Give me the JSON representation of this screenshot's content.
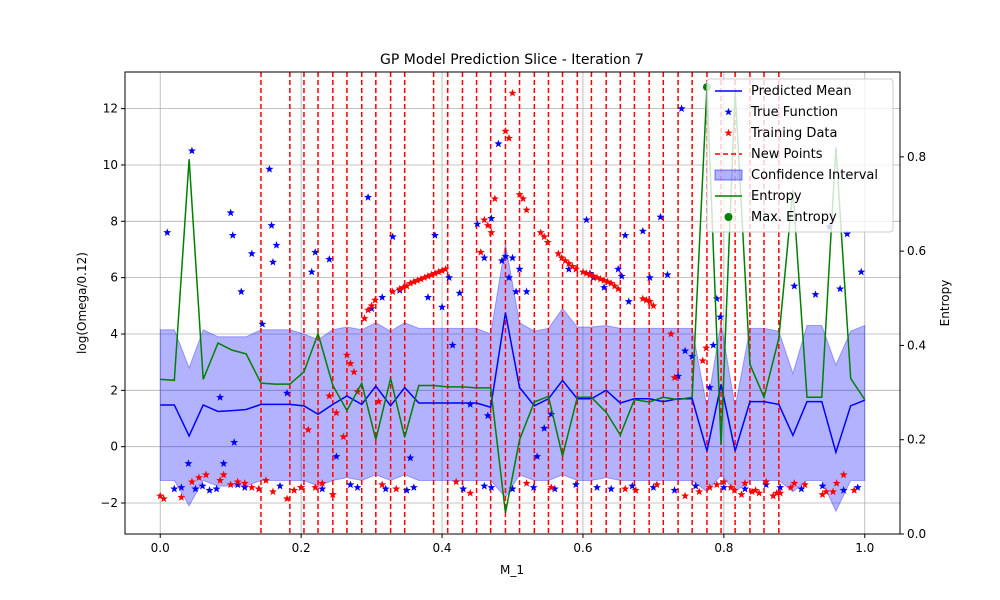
{
  "chart_data": {
    "type": "line",
    "title": "GP Model Prediction Slice - Iteration 7",
    "xlabel": "M_1",
    "ylabel": "log(Omega/0.12)",
    "y2label": "Entropy",
    "xlim": [
      -0.05,
      1.05
    ],
    "ylim": [
      -3.1,
      13.3
    ],
    "y2lim": [
      0.0,
      0.98
    ],
    "x_ticks": [
      0.0,
      0.2,
      0.4,
      0.6,
      0.8,
      1.0
    ],
    "y_ticks": [
      -2,
      0,
      2,
      4,
      6,
      8,
      10,
      12
    ],
    "y2_ticks": [
      0.0,
      0.2,
      0.4,
      0.6,
      0.8
    ],
    "grid": true,
    "legend_position": "top-right",
    "colors": {
      "predicted_mean": "#0000ff",
      "true_function": "#0000ff",
      "training_data": "#ff0000",
      "new_points": "#ff0000",
      "confidence_interval": "#0000ff",
      "entropy": "#008000",
      "max_entropy": "#008000"
    },
    "legend": [
      {
        "key": "predicted_mean",
        "label": "Predicted Mean",
        "marker": "line"
      },
      {
        "key": "true_function",
        "label": "True Function",
        "marker": "star"
      },
      {
        "key": "training_data",
        "label": "Training Data",
        "marker": "star"
      },
      {
        "key": "new_points",
        "label": "New Points",
        "marker": "dashed"
      },
      {
        "key": "confidence_interval",
        "label": "Confidence Interval",
        "marker": "patch"
      },
      {
        "key": "entropy",
        "label": "Entropy",
        "marker": "line"
      },
      {
        "key": "max_entropy",
        "label": "Max. Entropy",
        "marker": "dot"
      }
    ],
    "predicted_mean": {
      "x": [
        0.0,
        0.02,
        0.041,
        0.061,
        0.082,
        0.102,
        0.122,
        0.143,
        0.163,
        0.184,
        0.204,
        0.224,
        0.245,
        0.265,
        0.286,
        0.306,
        0.327,
        0.347,
        0.367,
        0.388,
        0.408,
        0.429,
        0.449,
        0.469,
        0.49,
        0.51,
        0.531,
        0.551,
        0.571,
        0.592,
        0.612,
        0.633,
        0.653,
        0.673,
        0.694,
        0.714,
        0.735,
        0.755,
        0.776,
        0.796,
        0.816,
        0.837,
        0.857,
        0.878,
        0.898,
        0.918,
        0.939,
        0.959,
        0.98,
        1.0
      ],
      "y": [
        1.48,
        1.48,
        0.38,
        1.48,
        1.25,
        1.28,
        1.32,
        1.5,
        1.5,
        1.5,
        1.45,
        1.15,
        1.5,
        1.8,
        1.5,
        2.15,
        1.45,
        2.1,
        1.55,
        1.55,
        1.55,
        1.55,
        1.55,
        1.4,
        4.75,
        2.1,
        1.45,
        1.7,
        2.35,
        1.7,
        1.7,
        2.0,
        1.55,
        1.7,
        1.7,
        1.6,
        1.7,
        1.7,
        -0.15,
        2.2,
        -0.15,
        1.6,
        1.6,
        1.5,
        0.4,
        1.6,
        1.6,
        -0.2,
        1.45,
        1.65
      ]
    },
    "confidence_interval": {
      "x": [
        0.0,
        0.02,
        0.041,
        0.061,
        0.082,
        0.102,
        0.122,
        0.143,
        0.163,
        0.184,
        0.204,
        0.224,
        0.245,
        0.265,
        0.286,
        0.306,
        0.327,
        0.347,
        0.367,
        0.388,
        0.408,
        0.429,
        0.449,
        0.469,
        0.49,
        0.51,
        0.531,
        0.551,
        0.571,
        0.592,
        0.612,
        0.633,
        0.653,
        0.673,
        0.694,
        0.714,
        0.735,
        0.755,
        0.776,
        0.796,
        0.816,
        0.837,
        0.857,
        0.878,
        0.898,
        0.918,
        0.939,
        0.959,
        0.98,
        1.0
      ],
      "lower": [
        -1.2,
        -1.2,
        -2.1,
        -1.2,
        -1.4,
        -1.4,
        -1.4,
        -1.2,
        -1.2,
        -1.2,
        -1.2,
        -1.4,
        -1.2,
        -1.1,
        -1.2,
        -1.0,
        -1.2,
        -1.0,
        -1.2,
        -1.2,
        -1.2,
        -1.2,
        -1.2,
        -1.2,
        -1.8,
        -1.0,
        -1.2,
        -1.2,
        -1.0,
        -1.2,
        -1.2,
        -1.1,
        -1.2,
        -1.2,
        -1.2,
        -1.2,
        -1.2,
        -1.2,
        -1.6,
        -1.0,
        -1.6,
        -1.2,
        -1.2,
        -1.2,
        -1.6,
        -1.2,
        -1.2,
        -2.3,
        -1.2,
        -1.2
      ],
      "upper": [
        4.15,
        4.15,
        2.8,
        4.15,
        3.9,
        3.9,
        3.9,
        4.15,
        4.15,
        4.15,
        4.0,
        3.8,
        4.15,
        4.25,
        4.15,
        4.4,
        4.1,
        4.4,
        4.2,
        4.2,
        4.2,
        4.2,
        4.2,
        4.0,
        7.2,
        4.4,
        4.1,
        4.2,
        4.9,
        4.25,
        4.25,
        4.3,
        4.2,
        4.2,
        4.2,
        4.2,
        4.2,
        4.2,
        1.4,
        4.4,
        1.4,
        4.2,
        4.2,
        4.1,
        2.6,
        4.3,
        4.3,
        2.9,
        4.1,
        4.3
      ]
    },
    "entropy": {
      "x": [
        0.0,
        0.02,
        0.041,
        0.061,
        0.082,
        0.102,
        0.122,
        0.143,
        0.163,
        0.184,
        0.204,
        0.224,
        0.245,
        0.265,
        0.286,
        0.306,
        0.327,
        0.347,
        0.367,
        0.388,
        0.408,
        0.429,
        0.449,
        0.469,
        0.49,
        0.51,
        0.531,
        0.551,
        0.571,
        0.592,
        0.612,
        0.633,
        0.653,
        0.673,
        0.694,
        0.714,
        0.735,
        0.755,
        0.776,
        0.796,
        0.816,
        0.837,
        0.857,
        0.878,
        0.898,
        0.918,
        0.939,
        0.959,
        0.98,
        1.0
      ],
      "y": [
        0.328,
        0.326,
        0.795,
        0.328,
        0.405,
        0.39,
        0.382,
        0.32,
        0.318,
        0.318,
        0.344,
        0.425,
        0.315,
        0.262,
        0.32,
        0.2,
        0.33,
        0.205,
        0.315,
        0.315,
        0.312,
        0.312,
        0.31,
        0.31,
        0.045,
        0.2,
        0.28,
        0.292,
        0.165,
        0.29,
        0.29,
        0.258,
        0.21,
        0.285,
        0.28,
        0.29,
        0.285,
        0.29,
        0.948,
        0.19,
        0.94,
        0.36,
        0.29,
        0.415,
        0.73,
        0.29,
        0.29,
        0.82,
        0.33,
        0.285
      ]
    },
    "max_entropy": {
      "x": [
        0.776
      ],
      "y": [
        0.948
      ]
    },
    "new_points_x": [
      0.143,
      0.184,
      0.204,
      0.224,
      0.245,
      0.265,
      0.286,
      0.306,
      0.327,
      0.347,
      0.388,
      0.408,
      0.429,
      0.449,
      0.469,
      0.49,
      0.51,
      0.531,
      0.551,
      0.571,
      0.592,
      0.612,
      0.633,
      0.653,
      0.673,
      0.694,
      0.714,
      0.735,
      0.755,
      0.776,
      0.796,
      0.816,
      0.837,
      0.857,
      0.878
    ],
    "true_function": {
      "x": [
        0.01,
        0.04,
        0.045,
        0.085,
        0.09,
        0.1,
        0.103,
        0.105,
        0.115,
        0.13,
        0.145,
        0.155,
        0.158,
        0.16,
        0.165,
        0.18,
        0.215,
        0.22,
        0.24,
        0.25,
        0.295,
        0.3,
        0.315,
        0.33,
        0.34,
        0.355,
        0.38,
        0.39,
        0.4,
        0.41,
        0.415,
        0.425,
        0.44,
        0.45,
        0.46,
        0.465,
        0.47,
        0.48,
        0.485,
        0.49,
        0.495,
        0.5,
        0.505,
        0.51,
        0.52,
        0.535,
        0.545,
        0.555,
        0.58,
        0.605,
        0.61,
        0.615,
        0.63,
        0.65,
        0.655,
        0.66,
        0.665,
        0.685,
        0.695,
        0.71,
        0.72,
        0.735,
        0.74,
        0.745,
        0.755,
        0.78,
        0.785,
        0.79,
        0.795,
        0.9,
        0.93,
        0.95,
        0.965,
        0.975,
        0.995,
        0.02,
        0.03,
        0.05,
        0.06,
        0.07,
        0.08,
        0.11,
        0.12,
        0.14,
        0.17,
        0.2,
        0.23,
        0.27,
        0.28,
        0.32,
        0.35,
        0.36,
        0.43,
        0.46,
        0.47,
        0.5,
        0.53,
        0.56,
        0.59,
        0.62,
        0.64,
        0.67,
        0.7,
        0.73,
        0.76,
        0.8,
        0.83,
        0.86,
        0.88,
        0.91,
        0.94,
        0.97,
        0.99
      ],
      "y": [
        7.6,
        -0.6,
        10.5,
        1.75,
        -0.6,
        8.3,
        7.5,
        0.15,
        5.5,
        6.85,
        4.35,
        9.85,
        7.85,
        6.55,
        7.15,
        1.9,
        6.2,
        6.9,
        6.65,
        -0.35,
        8.85,
        4.9,
        5.3,
        7.45,
        5.55,
        -0.4,
        5.3,
        7.5,
        4.95,
        6.0,
        3.6,
        5.45,
        1.5,
        7.9,
        6.7,
        1.1,
        8.1,
        10.75,
        6.6,
        6.75,
        6.0,
        6.7,
        5.5,
        6.3,
        5.5,
        -0.35,
        0.65,
        1.15,
        6.3,
        8.05,
        6.15,
        6.0,
        5.65,
        6.3,
        6.05,
        7.5,
        5.15,
        7.65,
        6.0,
        8.15,
        6.1,
        2.5,
        12.0,
        3.4,
        3.2,
        2.1,
        3.6,
        5.25,
        4.6,
        5.7,
        5.4,
        7.8,
        5.6,
        7.55,
        6.2,
        -1.5,
        -1.45,
        -1.5,
        -1.4,
        -1.55,
        -1.5,
        -1.35,
        -1.45,
        -1.5,
        -1.4,
        -1.45,
        -1.5,
        -1.35,
        -1.45,
        -1.5,
        -1.55,
        -1.45,
        -1.5,
        -1.4,
        -1.45,
        -1.5,
        -1.45,
        -1.5,
        -1.35,
        -1.45,
        -1.5,
        -1.4,
        -1.45,
        -1.55,
        -1.4,
        -1.45,
        -1.5,
        -1.35,
        -1.45,
        -1.5,
        -1.4,
        -1.55,
        -1.45
      ]
    },
    "training_data": {
      "x": [
        0.0,
        0.005,
        0.03,
        0.045,
        0.055,
        0.065,
        0.085,
        0.09,
        0.1,
        0.11,
        0.14,
        0.15,
        0.18,
        0.2,
        0.21,
        0.23,
        0.24,
        0.25,
        0.26,
        0.265,
        0.27,
        0.275,
        0.28,
        0.29,
        0.295,
        0.3,
        0.305,
        0.31,
        0.33,
        0.34,
        0.345,
        0.35,
        0.355,
        0.36,
        0.365,
        0.37,
        0.375,
        0.38,
        0.385,
        0.39,
        0.395,
        0.4,
        0.405,
        0.455,
        0.46,
        0.465,
        0.47,
        0.475,
        0.49,
        0.495,
        0.5,
        0.51,
        0.515,
        0.52,
        0.54,
        0.545,
        0.55,
        0.565,
        0.57,
        0.575,
        0.58,
        0.585,
        0.59,
        0.6,
        0.605,
        0.61,
        0.615,
        0.62,
        0.625,
        0.63,
        0.635,
        0.64,
        0.645,
        0.65,
        0.685,
        0.69,
        0.695,
        0.7,
        0.725,
        0.73,
        0.77,
        0.775,
        0.78,
        0.79,
        0.8,
        0.815,
        0.83,
        0.84,
        0.85,
        0.87,
        0.88,
        0.9,
        0.94,
        0.955,
        0.96,
        0.97,
        0.985,
        0.12,
        0.13,
        0.16,
        0.19,
        0.22,
        0.245,
        0.315,
        0.335,
        0.42,
        0.44,
        0.52,
        0.555,
        0.66,
        0.675,
        0.705,
        0.745,
        0.765,
        0.81,
        0.825,
        0.845,
        0.86,
        0.875,
        0.895,
        0.915,
        0.945
      ],
      "y": [
        -1.75,
        -1.85,
        -1.8,
        -1.25,
        -1.1,
        -1.0,
        -1.2,
        -1.0,
        -1.35,
        -1.25,
        -1.5,
        -1.2,
        -1.85,
        -1.45,
        0.6,
        -1.3,
        1.8,
        1.2,
        0.35,
        3.25,
        2.95,
        2.65,
        1.95,
        4.55,
        4.85,
        5.0,
        5.2,
        1.6,
        5.5,
        5.6,
        5.65,
        5.7,
        5.8,
        5.85,
        5.9,
        5.95,
        6.0,
        6.05,
        6.1,
        6.15,
        6.2,
        6.25,
        6.3,
        6.9,
        8.05,
        7.85,
        7.6,
        8.8,
        11.2,
        10.95,
        12.55,
        8.95,
        8.8,
        8.4,
        7.6,
        7.45,
        7.25,
        6.85,
        6.7,
        6.6,
        6.5,
        6.4,
        6.3,
        6.2,
        6.15,
        6.1,
        6.05,
        6.0,
        5.95,
        5.9,
        5.85,
        5.8,
        5.7,
        5.6,
        5.25,
        5.2,
        5.15,
        5.0,
        4.0,
        2.45,
        3.05,
        3.5,
        -1.45,
        -1.35,
        -1.25,
        -1.55,
        -1.3,
        -1.6,
        -1.65,
        -1.75,
        -1.65,
        -1.3,
        -1.7,
        -1.6,
        -1.3,
        -1.0,
        -1.55,
        -1.3,
        -1.45,
        -1.6,
        -1.55,
        -1.45,
        -1.7,
        -1.35,
        -1.5,
        -1.25,
        -1.65,
        -1.3,
        -1.45,
        -1.5,
        -1.55,
        -1.35,
        -1.75,
        -1.6,
        -1.45,
        -1.7,
        -1.55,
        -1.25,
        -1.65,
        -1.45,
        -1.35,
        -1.6
      ]
    }
  }
}
